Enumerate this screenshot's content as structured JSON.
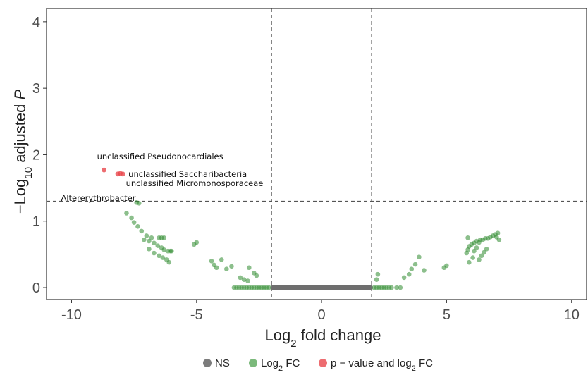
{
  "chart_data": {
    "type": "scatter",
    "title": "",
    "xlabel": "Log2 fold change",
    "ylabel": "−Log10 adjusted P",
    "xlim": [
      -11,
      10.6
    ],
    "ylim": [
      -0.18,
      4.2
    ],
    "x_ticks": [
      -10,
      -5,
      0,
      5,
      10
    ],
    "y_ticks": [
      0,
      1,
      2,
      3,
      4
    ],
    "grid": false,
    "thresholds": {
      "x": [
        -2,
        2
      ],
      "y": 1.3
    },
    "legend_position": "bottom",
    "legend": [
      {
        "key": "NS",
        "label_main": "NS",
        "label_sub": "",
        "label_tail": "",
        "color": "#6e6e6e"
      },
      {
        "key": "fc",
        "label_main": "Log",
        "label_sub": "2",
        "label_tail": " FC",
        "color": "#5aa75a"
      },
      {
        "key": "both",
        "label_main": "p − value and log",
        "label_sub": "2",
        "label_tail": " FC",
        "color": "#e8474c"
      }
    ],
    "series": [
      {
        "key": "NS",
        "color": "#6e6e6e",
        "points": [
          [
            -1.95,
            0
          ],
          [
            -1.8,
            0
          ],
          [
            -1.65,
            0
          ],
          [
            -1.5,
            0
          ],
          [
            -1.35,
            0
          ],
          [
            -1.2,
            0
          ],
          [
            -1.05,
            0
          ],
          [
            -0.9,
            0
          ],
          [
            -0.75,
            0
          ],
          [
            -0.6,
            0
          ],
          [
            -0.45,
            0
          ],
          [
            -0.3,
            0
          ],
          [
            -0.15,
            0
          ],
          [
            0,
            0
          ],
          [
            0.15,
            0
          ],
          [
            0.3,
            0
          ],
          [
            0.45,
            0
          ],
          [
            0.6,
            0
          ],
          [
            0.75,
            0
          ],
          [
            0.9,
            0
          ],
          [
            1.05,
            0
          ],
          [
            1.2,
            0
          ],
          [
            1.35,
            0
          ],
          [
            1.5,
            0
          ],
          [
            1.65,
            0
          ],
          [
            1.8,
            0
          ],
          [
            1.95,
            0
          ]
        ]
      },
      {
        "key": "fc",
        "color": "#2e8b2e",
        "points": [
          [
            -7.4,
            1.28
          ],
          [
            -7.3,
            1.27
          ],
          [
            -7.8,
            1.12
          ],
          [
            -7.6,
            1.05
          ],
          [
            -7.5,
            0.98
          ],
          [
            -7.35,
            0.92
          ],
          [
            -7.2,
            0.85
          ],
          [
            -7.0,
            0.78
          ],
          [
            -6.8,
            0.75
          ],
          [
            -6.5,
            0.75
          ],
          [
            -6.4,
            0.75
          ],
          [
            -6.3,
            0.75
          ],
          [
            -7.1,
            0.72
          ],
          [
            -6.9,
            0.7
          ],
          [
            -6.7,
            0.67
          ],
          [
            -6.55,
            0.63
          ],
          [
            -6.4,
            0.6
          ],
          [
            -6.3,
            0.57
          ],
          [
            -6.15,
            0.55
          ],
          [
            -6.05,
            0.55
          ],
          [
            -6.0,
            0.55
          ],
          [
            -6.9,
            0.58
          ],
          [
            -6.7,
            0.52
          ],
          [
            -6.5,
            0.48
          ],
          [
            -6.35,
            0.45
          ],
          [
            -6.2,
            0.42
          ],
          [
            -6.1,
            0.38
          ],
          [
            -5.1,
            0.65
          ],
          [
            -5.0,
            0.68
          ],
          [
            -4.4,
            0.4
          ],
          [
            -4.3,
            0.34
          ],
          [
            -4.2,
            0.3
          ],
          [
            -4.0,
            0.42
          ],
          [
            -3.8,
            0.28
          ],
          [
            -3.6,
            0.32
          ],
          [
            -2.9,
            0.3
          ],
          [
            -2.7,
            0.22
          ],
          [
            -2.6,
            0.18
          ],
          [
            -3.25,
            0.15
          ],
          [
            -3.1,
            0.12
          ],
          [
            -2.95,
            0.1
          ],
          [
            -3.5,
            0.0
          ],
          [
            -3.4,
            0.0
          ],
          [
            -3.3,
            0.0
          ],
          [
            -3.2,
            0.0
          ],
          [
            -3.1,
            0.0
          ],
          [
            -3.0,
            0.0
          ],
          [
            -2.9,
            0.0
          ],
          [
            -2.8,
            0.0
          ],
          [
            -2.7,
            0.0
          ],
          [
            -2.6,
            0.0
          ],
          [
            -2.5,
            0.0
          ],
          [
            -2.4,
            0.0
          ],
          [
            -2.3,
            0.0
          ],
          [
            -2.2,
            0.0
          ],
          [
            -2.1,
            0.0
          ],
          [
            2.1,
            0.0
          ],
          [
            2.2,
            0.0
          ],
          [
            2.3,
            0.0
          ],
          [
            2.4,
            0.0
          ],
          [
            2.5,
            0.0
          ],
          [
            2.6,
            0.0
          ],
          [
            2.7,
            0.0
          ],
          [
            2.8,
            0.0
          ],
          [
            3.0,
            0.0
          ],
          [
            3.15,
            0.0
          ],
          [
            2.2,
            0.12
          ],
          [
            2.25,
            0.2
          ],
          [
            3.3,
            0.15
          ],
          [
            3.5,
            0.2
          ],
          [
            3.6,
            0.28
          ],
          [
            3.75,
            0.35
          ],
          [
            3.9,
            0.46
          ],
          [
            4.1,
            0.26
          ],
          [
            4.9,
            0.3
          ],
          [
            5.0,
            0.33
          ],
          [
            5.8,
            0.52
          ],
          [
            5.85,
            0.57
          ],
          [
            5.9,
            0.62
          ],
          [
            6.0,
            0.65
          ],
          [
            6.1,
            0.55
          ],
          [
            6.2,
            0.6
          ],
          [
            6.3,
            0.68
          ],
          [
            6.35,
            0.72
          ],
          [
            6.45,
            0.72
          ],
          [
            6.55,
            0.74
          ],
          [
            6.65,
            0.74
          ],
          [
            6.75,
            0.76
          ],
          [
            6.85,
            0.78
          ],
          [
            6.95,
            0.8
          ],
          [
            7.05,
            0.82
          ],
          [
            6.2,
            0.7
          ],
          [
            6.1,
            0.67
          ],
          [
            6.05,
            0.45
          ],
          [
            5.9,
            0.38
          ],
          [
            6.3,
            0.42
          ],
          [
            6.4,
            0.48
          ],
          [
            6.5,
            0.53
          ],
          [
            6.6,
            0.58
          ],
          [
            7.0,
            0.76
          ],
          [
            7.1,
            0.72
          ],
          [
            5.85,
            0.75
          ]
        ]
      },
      {
        "key": "both",
        "color": "#e8474c",
        "points": [
          [
            -8.7,
            1.77
          ],
          [
            -8.15,
            1.71
          ],
          [
            -7.95,
            1.71
          ],
          [
            -8.05,
            1.72
          ]
        ]
      }
    ],
    "annotations": [
      {
        "text": "unclassified Pseudonocardiales",
        "x": -8.7,
        "y": 1.77,
        "dx": -10,
        "dy": -15,
        "anchor": "start"
      },
      {
        "text": "unclassified Saccharibacteria",
        "x": -7.95,
        "y": 1.71,
        "dx": 8,
        "dy": 4,
        "anchor": "start"
      },
      {
        "text": "unclassified Micromonosporaceae",
        "x": -8.05,
        "y": 1.72,
        "dx": 8,
        "dy": 18,
        "anchor": "start"
      },
      {
        "text": "Altererythrobacter",
        "x": -10.0,
        "y": 1.38,
        "dx": -15,
        "dy": 7,
        "anchor": "start"
      }
    ]
  }
}
